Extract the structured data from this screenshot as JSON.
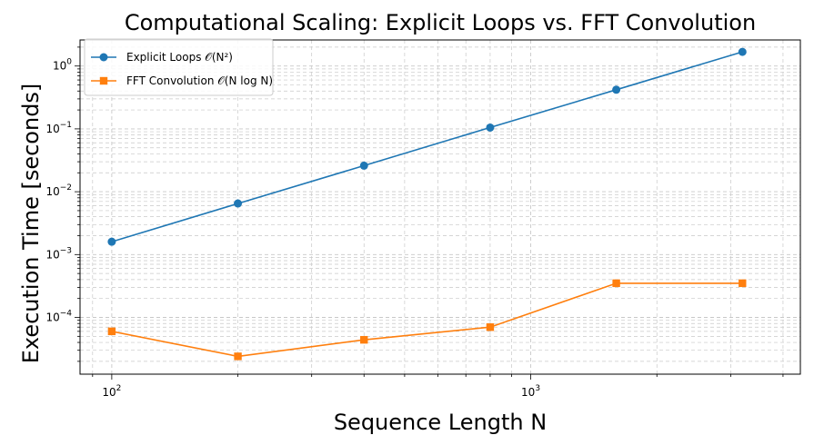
{
  "chart_data": {
    "type": "line",
    "title": "Computational Scaling: Explicit Loops vs. FFT Convolution",
    "xlabel": "Sequence Length N",
    "ylabel": "Execution Time [seconds]",
    "x_scale": "log",
    "y_scale": "log",
    "xlim": [
      84,
      4400
    ],
    "ylim": [
      1.25e-05,
      2.6
    ],
    "grid": true,
    "legend_position": "upper left",
    "x": [
      100,
      200,
      400,
      800,
      1600,
      3200
    ],
    "x_ticks": [
      {
        "value": 100,
        "base": "10",
        "exp": "2"
      },
      {
        "value": 1000,
        "base": "10",
        "exp": "3"
      }
    ],
    "y_ticks": [
      {
        "value": 1,
        "base": "10",
        "exp": "0"
      },
      {
        "value": 0.1,
        "base": "10",
        "exp": "−1"
      },
      {
        "value": 0.01,
        "base": "10",
        "exp": "−2"
      },
      {
        "value": 0.001,
        "base": "10",
        "exp": "−3"
      },
      {
        "value": 0.0001,
        "base": "10",
        "exp": "−4"
      }
    ],
    "series": [
      {
        "name": "Explicit Loops 𝒪(N²)",
        "color": "#1f77b4",
        "marker": "circle",
        "values": [
          0.0016,
          0.0065,
          0.026,
          0.105,
          0.42,
          1.68
        ]
      },
      {
        "name": "FFT Convolution 𝒪(N log N)",
        "color": "#ff7f0e",
        "marker": "square",
        "values": [
          6e-05,
          2.4e-05,
          4.4e-05,
          7e-05,
          0.00035,
          0.00035
        ]
      }
    ]
  }
}
